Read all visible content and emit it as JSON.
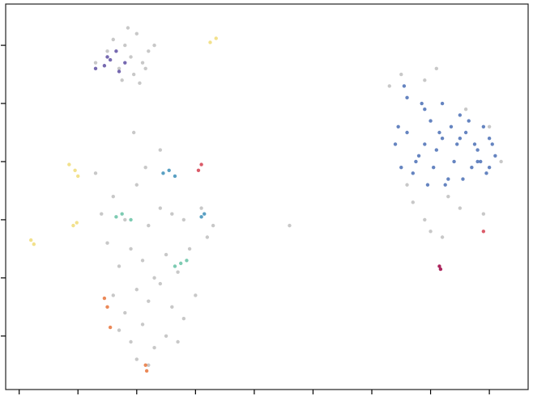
{
  "chart_data": {
    "type": "scatter",
    "xlim": [
      -0.23,
      8.66
    ],
    "ylim": [
      -0.92,
      5.71
    ],
    "xticks": [
      0,
      1,
      2,
      3,
      4,
      5,
      6,
      7,
      8
    ],
    "yticks": [
      0,
      1,
      2,
      3,
      4,
      5
    ],
    "series": [
      {
        "color": "#9a9a9a",
        "x": [
          1.3,
          1.5,
          1.6,
          1.7,
          1.8,
          1.9,
          2.0,
          2.1,
          2.2,
          2.3,
          1.75,
          1.95,
          2.15,
          1.85,
          2.05,
          6.3,
          6.5,
          6.6,
          6.9,
          7.1,
          7.3,
          7.6,
          8.0,
          8.2,
          6.7,
          6.9,
          7.2,
          7.5,
          7.9,
          7.0,
          1.3,
          1.4,
          1.6,
          1.8,
          2.0,
          2.2,
          2.4,
          2.6,
          2.8,
          3.1,
          1.5,
          1.7,
          1.9,
          2.1,
          2.3,
          2.5,
          2.7,
          2.9,
          3.2,
          3.3,
          1.6,
          1.8,
          2.0,
          2.2,
          2.4,
          2.6,
          2.8,
          3.0,
          1.7,
          1.9,
          2.1,
          2.3,
          2.5,
          2.7,
          2.0,
          2.2,
          2.4,
          1.95,
          2.15,
          4.6
        ],
        "y": [
          4.7,
          4.9,
          5.1,
          4.6,
          5.0,
          4.8,
          5.2,
          4.7,
          4.9,
          5.0,
          4.4,
          4.5,
          4.6,
          5.3,
          4.35,
          4.3,
          4.5,
          2.6,
          4.4,
          4.6,
          2.4,
          3.9,
          3.6,
          3.0,
          2.3,
          2.0,
          1.7,
          2.2,
          2.1,
          1.8,
          2.8,
          2.1,
          2.4,
          2.0,
          2.6,
          1.9,
          2.2,
          2.1,
          2.0,
          2.2,
          1.6,
          1.2,
          1.5,
          1.3,
          1.0,
          1.4,
          1.1,
          1.5,
          1.7,
          1.9,
          0.7,
          0.4,
          0.8,
          0.6,
          0.9,
          0.5,
          0.3,
          0.7,
          0.1,
          -0.1,
          0.2,
          -0.2,
          0.0,
          -0.1,
          -0.4,
          -0.5,
          3.2,
          3.5,
          2.9,
          1.9
        ]
      },
      {
        "color": "#4a6fb5",
        "x": [
          6.4,
          6.6,
          6.8,
          7.0,
          7.2,
          7.4,
          7.6,
          7.8,
          8.0,
          8.1,
          6.5,
          6.7,
          6.9,
          7.1,
          7.3,
          7.5,
          7.7,
          7.9,
          8.05,
          6.6,
          6.9,
          7.2,
          7.5,
          7.8,
          8.0,
          6.45,
          6.75,
          7.05,
          7.35,
          7.65,
          7.95,
          6.55,
          6.85,
          7.15,
          7.45,
          7.75,
          6.95,
          7.25,
          7.55,
          7.85
        ],
        "y": [
          3.3,
          3.5,
          3.1,
          3.7,
          3.4,
          3.0,
          3.5,
          3.2,
          2.9,
          3.1,
          2.9,
          2.8,
          3.9,
          3.2,
          2.7,
          3.8,
          2.9,
          3.6,
          3.3,
          4.1,
          3.3,
          4.0,
          3.4,
          3.0,
          3.4,
          3.6,
          3.0,
          2.9,
          3.6,
          3.7,
          2.8,
          4.3,
          4.0,
          3.5,
          3.3,
          3.3,
          2.6,
          2.6,
          2.7,
          3.0
        ]
      },
      {
        "color": "#5e4fa2",
        "x": [
          1.3,
          1.45,
          1.55,
          1.65,
          1.8,
          1.7,
          1.5
        ],
        "y": [
          4.6,
          4.65,
          4.75,
          4.9,
          4.7,
          4.55,
          4.8
        ]
      },
      {
        "color": "#f0dc78",
        "x": [
          0.85,
          0.95,
          1.0,
          0.98,
          0.92,
          0.2,
          0.25,
          3.25,
          3.35
        ],
        "y": [
          2.95,
          2.85,
          2.75,
          1.95,
          1.9,
          1.65,
          1.58,
          5.05,
          5.12
        ]
      },
      {
        "color": "#3d8fb8",
        "x": [
          2.45,
          2.55,
          2.65,
          3.1,
          3.15
        ],
        "y": [
          2.8,
          2.85,
          2.75,
          2.05,
          2.1
        ]
      },
      {
        "color": "#66c2a5",
        "x": [
          1.65,
          1.75,
          1.9,
          2.75,
          2.85,
          2.65
        ],
        "y": [
          2.05,
          2.1,
          2.0,
          1.25,
          1.3,
          1.2
        ]
      },
      {
        "color": "#e8743b",
        "x": [
          1.45,
          1.5,
          1.55,
          2.15,
          2.17
        ],
        "y": [
          0.65,
          0.5,
          0.15,
          -0.5,
          -0.6
        ]
      },
      {
        "color": "#d53e4f",
        "x": [
          3.05,
          3.1,
          7.9
        ],
        "y": [
          2.85,
          2.95,
          1.8
        ]
      },
      {
        "color": "#9e0142",
        "x": [
          7.15,
          7.17
        ],
        "y": [
          1.2,
          1.15
        ]
      }
    ]
  }
}
